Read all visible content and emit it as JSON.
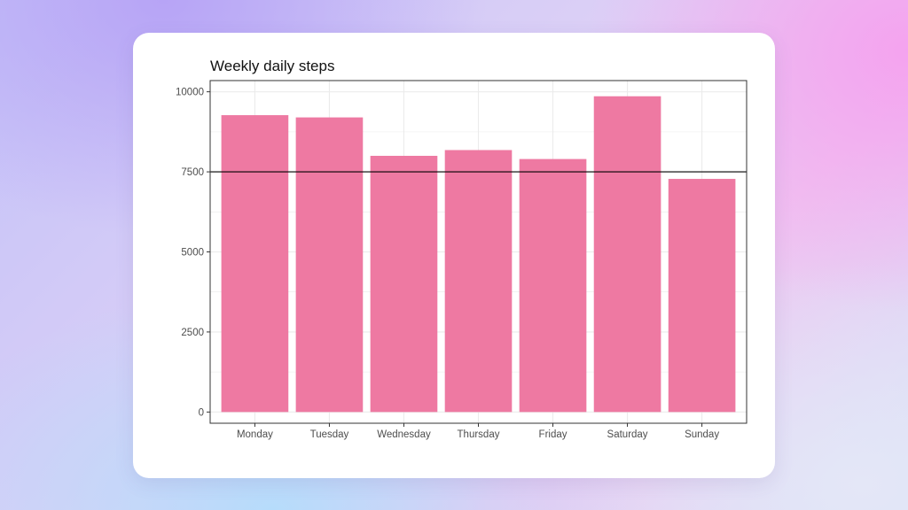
{
  "colors": {
    "bar": "#ee79a2",
    "reference_line": "#000000",
    "grid": "#ebebeb",
    "panel_border": "#333333"
  },
  "chart_data": {
    "type": "bar",
    "title": "Weekly daily steps",
    "xlabel": "",
    "ylabel": "",
    "categories": [
      "Monday",
      "Tuesday",
      "Wednesday",
      "Thursday",
      "Friday",
      "Saturday",
      "Sunday"
    ],
    "values": [
      9270,
      9200,
      8000,
      8180,
      7900,
      9860,
      7280
    ],
    "ylim": [
      -350,
      10350
    ],
    "yticks": [
      0,
      2500,
      5000,
      7500,
      10000
    ],
    "ytick_labels": [
      "0",
      "2500",
      "5000",
      "7500",
      "10000"
    ],
    "reference_line": 7500,
    "grid": true,
    "legend": "none"
  }
}
